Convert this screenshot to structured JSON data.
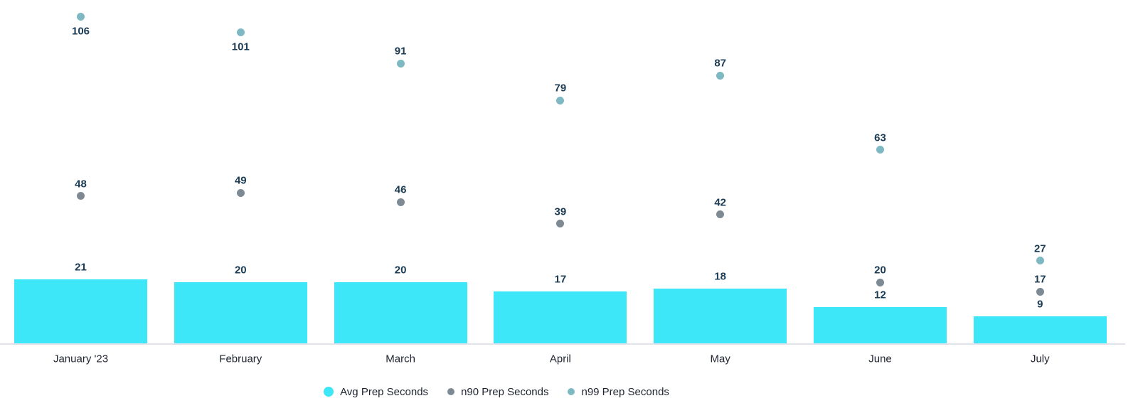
{
  "chart_data": {
    "type": "bar",
    "title": "",
    "xlabel": "",
    "ylabel": "",
    "categories": [
      "January '23",
      "February",
      "March",
      "April",
      "May",
      "June",
      "July"
    ],
    "series": [
      {
        "name": "Avg Prep Seconds",
        "type": "bar",
        "color": "#3DE7F8",
        "values": [
          21,
          20,
          20,
          17,
          18,
          12,
          9
        ]
      },
      {
        "name": "n90 Prep Seconds",
        "type": "scatter",
        "color": "#7D8A94",
        "values": [
          48,
          49,
          46,
          39,
          42,
          20,
          17
        ]
      },
      {
        "name": "n99 Prep Seconds",
        "type": "scatter",
        "color": "#7EB8C3",
        "values": [
          106,
          101,
          91,
          79,
          87,
          63,
          27
        ]
      }
    ],
    "ylim": [
      0,
      111
    ],
    "grid": false,
    "y_axis_visible": false,
    "data_labels": true,
    "legend_position": "bottom"
  },
  "styles": {
    "annotation_text_color": "#1B3C54",
    "axis_label_text_color": "#1F2430",
    "legend_text_color": "#1F2430",
    "axis_line_color": "#E2E2EA",
    "background_color": "#FFFFFF"
  }
}
